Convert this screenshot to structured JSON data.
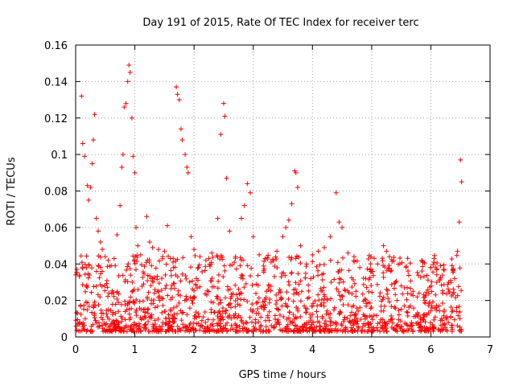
{
  "chart_data": {
    "type": "scatter",
    "title": "Day 191 of 2015, Rate Of TEC Index for receiver terc",
    "xlabel": "GPS time / hours",
    "ylabel": "ROTI / TECUs",
    "xlim": [
      0,
      7
    ],
    "ylim": [
      0,
      0.16
    ],
    "grid": true,
    "marker": "+",
    "marker_color": "#ff0000",
    "xticks": [
      0,
      1,
      2,
      3,
      4,
      5,
      6,
      7
    ],
    "xtick_labels": [
      "0",
      "1",
      "2",
      "3",
      "4",
      "5",
      "6",
      "7"
    ],
    "yticks": [
      0,
      0.02,
      0.04,
      0.06,
      0.08,
      0.1,
      0.12,
      0.14,
      0.16
    ],
    "ytick_labels": [
      "0",
      "0.02",
      "0.04",
      "0.06",
      "0.08",
      "0.1",
      "0.12",
      "0.14",
      "0.16"
    ],
    "series": [
      {
        "name": "ROTI",
        "x": [
          0.1,
          0.12,
          0.15,
          0.2,
          0.22,
          0.25,
          0.28,
          0.3,
          0.32,
          0.35,
          0.38,
          0.42,
          0.45,
          0.5,
          0.55,
          0.6,
          0.65,
          0.7,
          0.75,
          0.78,
          0.8,
          0.82,
          0.85,
          0.88,
          0.9,
          0.92,
          0.95,
          0.97,
          1.0,
          1.02,
          1.05,
          1.1,
          1.2,
          1.25,
          1.3,
          1.4,
          1.5,
          1.55,
          1.6,
          1.65,
          1.7,
          1.72,
          1.75,
          1.78,
          1.8,
          1.85,
          1.88,
          1.9,
          1.95,
          2.0,
          2.1,
          2.2,
          2.3,
          2.4,
          2.45,
          2.5,
          2.52,
          2.55,
          2.6,
          2.7,
          2.8,
          2.85,
          2.9,
          2.95,
          3.0,
          3.1,
          3.2,
          3.3,
          3.4,
          3.5,
          3.55,
          3.6,
          3.65,
          3.7,
          3.72,
          3.75,
          3.8,
          3.9,
          4.0,
          4.1,
          4.2,
          4.3,
          4.4,
          4.45,
          4.5,
          4.6,
          4.7,
          4.8,
          4.9,
          5.0,
          5.1,
          5.2,
          5.25,
          5.3,
          5.4,
          5.5,
          5.6,
          5.7,
          5.8,
          5.9,
          6.0,
          6.05,
          6.1,
          6.2,
          6.3,
          6.4,
          6.45,
          6.48,
          6.5,
          6.52
        ],
        "y": [
          0.132,
          0.106,
          0.099,
          0.083,
          0.075,
          0.082,
          0.095,
          0.108,
          0.122,
          0.065,
          0.058,
          0.052,
          0.048,
          0.044,
          0.042,
          0.039,
          0.043,
          0.056,
          0.072,
          0.093,
          0.1,
          0.126,
          0.128,
          0.14,
          0.149,
          0.145,
          0.12,
          0.099,
          0.09,
          0.06,
          0.05,
          0.045,
          0.066,
          0.052,
          0.049,
          0.048,
          0.047,
          0.061,
          0.043,
          0.038,
          0.137,
          0.133,
          0.13,
          0.114,
          0.108,
          0.1,
          0.093,
          0.09,
          0.055,
          0.048,
          0.044,
          0.042,
          0.046,
          0.065,
          0.111,
          0.128,
          0.121,
          0.087,
          0.058,
          0.044,
          0.065,
          0.072,
          0.084,
          0.079,
          0.055,
          0.045,
          0.043,
          0.041,
          0.047,
          0.055,
          0.06,
          0.064,
          0.073,
          0.091,
          0.09,
          0.082,
          0.05,
          0.04,
          0.045,
          0.047,
          0.049,
          0.055,
          0.079,
          0.063,
          0.06,
          0.046,
          0.042,
          0.038,
          0.032,
          0.036,
          0.04,
          0.05,
          0.047,
          0.044,
          0.03,
          0.028,
          0.027,
          0.025,
          0.024,
          0.022,
          0.038,
          0.041,
          0.03,
          0.024,
          0.03,
          0.032,
          0.047,
          0.063,
          0.097,
          0.085
        ]
      }
    ]
  }
}
